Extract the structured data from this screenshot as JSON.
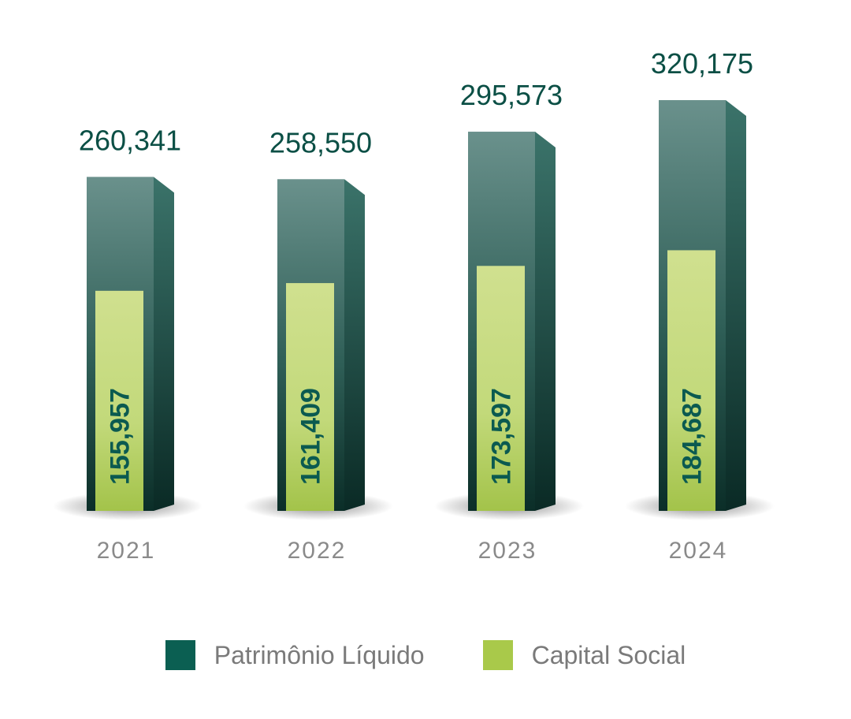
{
  "chart_data": {
    "type": "bar",
    "categories": [
      "2021",
      "2022",
      "2023",
      "2024"
    ],
    "series": [
      {
        "name": "Patrimônio Líquido",
        "values": [
          260341,
          258550,
          295573,
          320175
        ],
        "labels": [
          "260,341",
          "258,550",
          "295,573",
          "320,175"
        ],
        "color": "#0b5f52"
      },
      {
        "name": "Capital Social",
        "values": [
          155957,
          161409,
          173597,
          184687
        ],
        "labels": [
          "155,957",
          "161,409",
          "173,597",
          "184,687"
        ],
        "color": "#a9c94a"
      }
    ],
    "legend_position": "bottom",
    "grid": false
  },
  "legend": [
    {
      "label": "Patrimônio Líquido",
      "color": "#0b5f52"
    },
    {
      "label": "Capital Social",
      "color": "#a9c94a"
    }
  ]
}
